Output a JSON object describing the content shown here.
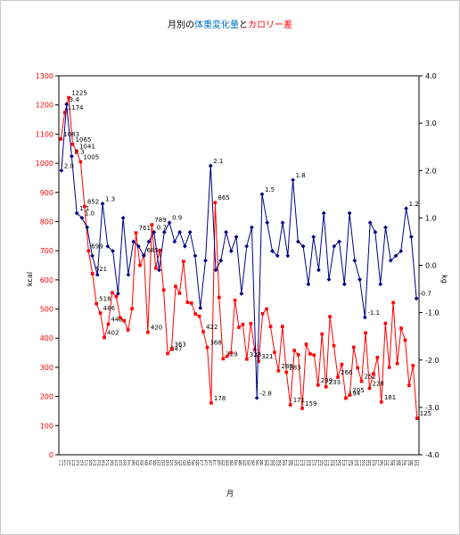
{
  "chart_data": {
    "type": "line",
    "title": {
      "prefix": "月別の",
      "part1": "体重変化量",
      "joiner": "と",
      "part2": "カロリー差"
    },
    "xlabel": "月",
    "ylabel_left": "kcal",
    "ylabel_right": "kg",
    "left_axis": {
      "min": 0,
      "max": 1300,
      "step": 100
    },
    "right_axis": {
      "min": -4.0,
      "max": 4.0,
      "step": 1.0
    },
    "x_ticks_text": "1 3 5 7 9 11 13 15 17 19 21 23 25 27 29 31 33 35 37 39 41 43 45 47 49 51 53 55 57 59 61 63 65 67 69 71 73 75 77 79 81 83 85 87 89 91 93 95 97 99 101 103 105 107 109 111 113 115 117 119 121 123 125 127 129 131 133 135 137 139 141 143 145 147 149 151",
    "series": [
      {
        "name": "カロリー差",
        "axis": "left",
        "color": "#ff0000",
        "values": [
          1083,
          1174,
          1225,
          1065,
          1041,
          1005,
          852,
          699,
          621,
          518,
          486,
          402,
          448,
          556,
          543,
          470,
          460,
          428,
          501,
          761,
          650,
          685,
          420,
          789,
          640,
          701,
          565,
          347,
          363,
          578,
          554,
          663,
          523,
          520,
          483,
          475,
          422,
          368,
          178,
          865,
          540,
          329,
          338,
          350,
          530,
          437,
          447,
          328,
          450,
          360,
          321,
          484,
          500,
          440,
          351,
          288,
          440,
          283,
          171,
          358,
          343,
          159,
          379,
          346,
          342,
          239,
          414,
          233,
          474,
          374,
          266,
          310,
          194,
          205,
          369,
          298,
          252,
          418,
          228,
          278,
          334,
          181,
          451,
          300,
          522,
          313,
          434,
          393,
          238,
          306,
          125
        ],
        "labels_shown": [
          "1083",
          "1174",
          "1225",
          "1065",
          "1041",
          "1005",
          "852",
          "699",
          "621",
          "518",
          "486",
          "402",
          "448",
          "761",
          "685",
          "420",
          "789",
          "347",
          "363",
          "865",
          "422",
          "368",
          "178",
          "329",
          "328",
          "321",
          "288",
          "283",
          "171",
          "159",
          "239",
          "233",
          "266",
          "194",
          "205",
          "252",
          "228",
          "181",
          "125"
        ]
      },
      {
        "name": "体重変化量",
        "axis": "right",
        "color": "#000080",
        "values": [
          2.0,
          3.4,
          2.3,
          1.1,
          1.0,
          0.8,
          0.2,
          -0.2,
          1.3,
          0.4,
          0.3,
          -0.6,
          1.0,
          -0.2,
          0.5,
          0.4,
          0.2,
          0.5,
          0.7,
          -0.1,
          0.7,
          0.9,
          0.5,
          0.7,
          0.4,
          0.7,
          0.2,
          -0.9,
          0.1,
          2.1,
          -0.1,
          0.1,
          0.7,
          0.3,
          0.6,
          -0.6,
          0.4,
          0.8,
          -2.8,
          1.5,
          0.9,
          0.3,
          0.2,
          0.9,
          0.2,
          1.8,
          0.5,
          0.4,
          -0.4,
          0.6,
          -0.1,
          1.1,
          -0.3,
          0.4,
          0.5,
          -0.4,
          1.1,
          0.1,
          -0.3,
          -1.1,
          0.9,
          0.7,
          -0.4,
          0.8,
          0.1,
          0.2,
          0.3,
          1.2,
          0.6,
          -0.7
        ],
        "labels_shown": [
          "2.0",
          "3.4",
          "2.3",
          "1.1",
          "1.0",
          "1.3",
          "1.0",
          "2.1",
          "1.5",
          "1.8",
          "-2.8",
          "1.1",
          "1.2",
          "0.9",
          "0.7",
          "-1.1",
          "-0.7"
        ]
      }
    ],
    "grid": false,
    "legend": "none"
  }
}
